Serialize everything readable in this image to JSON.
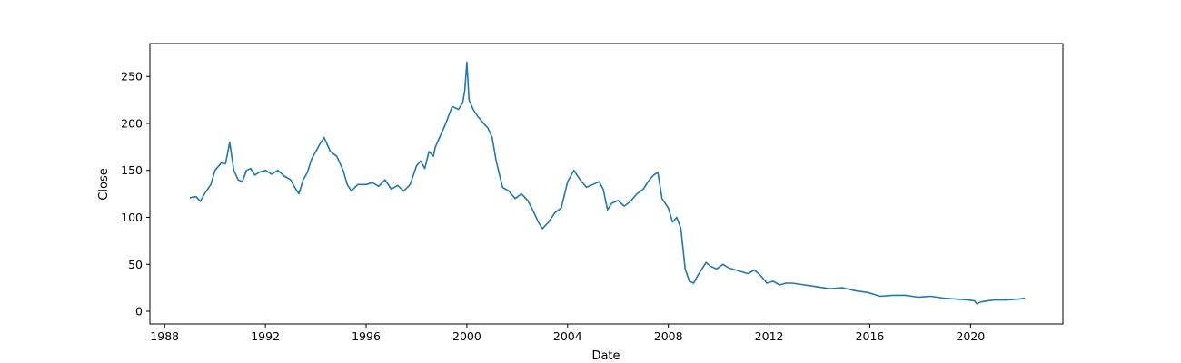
{
  "chart_data": {
    "type": "line",
    "title": "",
    "xlabel": "Date",
    "ylabel": "Close",
    "xlim": [
      "1987-06-01",
      "2023-09-01"
    ],
    "ylim": [
      -13.5,
      285
    ],
    "x_ticks": [
      "1988",
      "1992",
      "1996",
      "2000",
      "2004",
      "2008",
      "2012",
      "2016",
      "2020"
    ],
    "y_ticks": [
      "0",
      "50",
      "100",
      "150",
      "200",
      "250"
    ],
    "grid": false,
    "legend": "none",
    "line_color": "#1f77b4",
    "series": [
      {
        "x": [
          "1989-01-01",
          "1989-04-01",
          "1989-06-01",
          "1989-08-01",
          "1989-11-01",
          "1990-01-01",
          "1990-04-01",
          "1990-06-01",
          "1990-07-01",
          "1990-08-01",
          "1990-10-01",
          "1990-12-01",
          "1991-02-01",
          "1991-04-01",
          "1991-06-01",
          "1991-08-01",
          "1991-10-01",
          "1992-01-01",
          "1992-04-01",
          "1992-07-01",
          "1992-10-01",
          "1993-01-01",
          "1993-03-01",
          "1993-05-01",
          "1993-07-01",
          "1993-09-01",
          "1993-11-01",
          "1994-01-01",
          "1994-03-01",
          "1994-05-01",
          "1994-08-01",
          "1994-11-01",
          "1995-02-01",
          "1995-04-01",
          "1995-06-01",
          "1995-09-01",
          "1996-01-01",
          "1996-04-01",
          "1996-07-01",
          "1996-10-01",
          "1997-01-01",
          "1997-04-01",
          "1997-07-01",
          "1997-10-01",
          "1998-01-01",
          "1998-03-01",
          "1998-05-01",
          "1998-07-01",
          "1998-09-01",
          "1998-10-01",
          "1998-12-01",
          "1999-03-01",
          "1999-06-01",
          "1999-09-01",
          "1999-11-01",
          "1999-12-01",
          "2000-01-01",
          "2000-02-01",
          "2000-04-01",
          "2000-06-01",
          "2000-09-01",
          "2000-11-01",
          "2001-01-01",
          "2001-03-01",
          "2001-06-01",
          "2001-09-01",
          "2001-12-01",
          "2002-03-01",
          "2002-06-01",
          "2002-09-01",
          "2002-11-01",
          "2003-01-01",
          "2003-04-01",
          "2003-07-01",
          "2003-10-01",
          "2004-01-01",
          "2004-04-01",
          "2004-07-01",
          "2004-10-01",
          "2005-01-01",
          "2005-04-01",
          "2005-06-01",
          "2005-08-01",
          "2005-10-01",
          "2006-01-01",
          "2006-04-01",
          "2006-07-01",
          "2006-10-01",
          "2007-01-01",
          "2007-04-01",
          "2007-06-01",
          "2007-08-01",
          "2007-10-01",
          "2008-01-01",
          "2008-03-01",
          "2008-05-01",
          "2008-07-01",
          "2008-09-01",
          "2008-11-01",
          "2009-01-01",
          "2009-03-01",
          "2009-05-01",
          "2009-07-01",
          "2009-09-01",
          "2009-12-01",
          "2010-03-01",
          "2010-06-01",
          "2010-09-01",
          "2010-12-01",
          "2011-03-01",
          "2011-06-01",
          "2011-09-01",
          "2011-12-01",
          "2012-03-01",
          "2012-06-01",
          "2012-09-01",
          "2012-12-01",
          "2013-06-01",
          "2013-12-01",
          "2014-06-01",
          "2014-12-01",
          "2015-06-01",
          "2015-12-01",
          "2016-06-01",
          "2016-12-01",
          "2017-06-01",
          "2017-12-01",
          "2018-06-01",
          "2018-12-01",
          "2019-06-01",
          "2019-12-01",
          "2020-03-01",
          "2020-04-01",
          "2020-06-01",
          "2020-12-01",
          "2021-06-01",
          "2021-12-01",
          "2022-03-01"
        ],
        "y": [
          121,
          122,
          117,
          125,
          135,
          150,
          158,
          157,
          168,
          180,
          150,
          140,
          138,
          150,
          152,
          145,
          148,
          150,
          146,
          150,
          144,
          140,
          132,
          125,
          140,
          148,
          162,
          170,
          178,
          185,
          170,
          165,
          150,
          135,
          128,
          135,
          135,
          137,
          133,
          140,
          130,
          134,
          128,
          135,
          155,
          160,
          152,
          170,
          165,
          175,
          185,
          200,
          218,
          215,
          222,
          235,
          265,
          225,
          215,
          208,
          200,
          195,
          185,
          160,
          132,
          128,
          120,
          125,
          118,
          105,
          95,
          88,
          95,
          105,
          110,
          138,
          150,
          140,
          132,
          135,
          138,
          130,
          108,
          115,
          118,
          112,
          117,
          125,
          130,
          140,
          145,
          148,
          120,
          110,
          95,
          100,
          88,
          45,
          32,
          30,
          38,
          45,
          52,
          48,
          45,
          50,
          46,
          44,
          42,
          40,
          44,
          38,
          30,
          32,
          28,
          30,
          30,
          28,
          26,
          24,
          25,
          22,
          20,
          16,
          17,
          17,
          15,
          16,
          14,
          13,
          12,
          11,
          8,
          10,
          12,
          12,
          13,
          14
        ]
      }
    ]
  }
}
